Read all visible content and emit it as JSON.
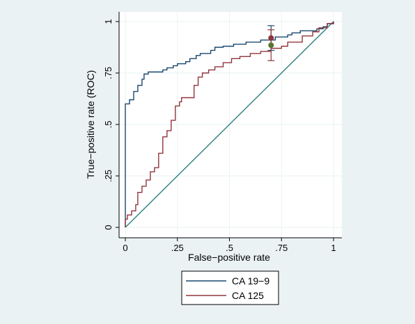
{
  "chart_data": {
    "type": "line",
    "title": "",
    "xlabel": "False−positive rate",
    "ylabel": "True−positive rate (ROC)",
    "xlim": [
      0,
      1
    ],
    "ylim": [
      0,
      1
    ],
    "xticks": [
      {
        "value": 0,
        "label": "0"
      },
      {
        "value": 0.25,
        "label": ".25"
      },
      {
        "value": 0.5,
        "label": ".5"
      },
      {
        "value": 0.75,
        "label": ".75"
      },
      {
        "value": 1,
        "label": "1"
      }
    ],
    "yticks": [
      {
        "value": 0,
        "label": "0"
      },
      {
        "value": 0.25,
        "label": ".25"
      },
      {
        "value": 0.5,
        "label": ".5"
      },
      {
        "value": 0.75,
        "label": ".75"
      },
      {
        "value": 1,
        "label": "1"
      }
    ],
    "grid": true,
    "legend_position": "bottom",
    "series": [
      {
        "name": "CA 19−9",
        "color": "#1a476f",
        "points": [
          [
            0,
            0
          ],
          [
            0,
            0.6
          ],
          [
            0.02,
            0.6
          ],
          [
            0.02,
            0.62
          ],
          [
            0.04,
            0.62
          ],
          [
            0.04,
            0.66
          ],
          [
            0.06,
            0.66
          ],
          [
            0.06,
            0.69
          ],
          [
            0.08,
            0.69
          ],
          [
            0.08,
            0.72
          ],
          [
            0.09,
            0.72
          ],
          [
            0.09,
            0.745
          ],
          [
            0.11,
            0.745
          ],
          [
            0.11,
            0.755
          ],
          [
            0.18,
            0.755
          ],
          [
            0.18,
            0.765
          ],
          [
            0.2,
            0.765
          ],
          [
            0.2,
            0.775
          ],
          [
            0.23,
            0.775
          ],
          [
            0.23,
            0.785
          ],
          [
            0.25,
            0.785
          ],
          [
            0.25,
            0.795
          ],
          [
            0.29,
            0.795
          ],
          [
            0.29,
            0.805
          ],
          [
            0.31,
            0.805
          ],
          [
            0.31,
            0.82
          ],
          [
            0.34,
            0.82
          ],
          [
            0.34,
            0.835
          ],
          [
            0.36,
            0.835
          ],
          [
            0.36,
            0.845
          ],
          [
            0.41,
            0.845
          ],
          [
            0.41,
            0.86
          ],
          [
            0.43,
            0.86
          ],
          [
            0.43,
            0.875
          ],
          [
            0.47,
            0.875
          ],
          [
            0.47,
            0.88
          ],
          [
            0.52,
            0.88
          ],
          [
            0.52,
            0.89
          ],
          [
            0.58,
            0.89
          ],
          [
            0.58,
            0.9
          ],
          [
            0.65,
            0.9
          ],
          [
            0.65,
            0.91
          ],
          [
            0.72,
            0.91
          ],
          [
            0.72,
            0.925
          ],
          [
            0.78,
            0.925
          ],
          [
            0.78,
            0.935
          ],
          [
            0.8,
            0.935
          ],
          [
            0.8,
            0.945
          ],
          [
            0.84,
            0.945
          ],
          [
            0.84,
            0.955
          ],
          [
            0.92,
            0.955
          ],
          [
            0.92,
            0.965
          ],
          [
            0.95,
            0.965
          ],
          [
            0.95,
            0.975
          ],
          [
            0.97,
            0.975
          ],
          [
            0.97,
            0.99
          ],
          [
            1,
            0.99
          ],
          [
            1,
            1
          ]
        ],
        "operating_point": {
          "x": 0.7,
          "y": 0.92,
          "ci": [
            0.86,
            0.98
          ]
        }
      },
      {
        "name": "CA 125",
        "color": "#90353b",
        "points": [
          [
            0,
            0
          ],
          [
            0,
            0.04
          ],
          [
            0.01,
            0.04
          ],
          [
            0.01,
            0.06
          ],
          [
            0.03,
            0.06
          ],
          [
            0.03,
            0.08
          ],
          [
            0.05,
            0.08
          ],
          [
            0.05,
            0.11
          ],
          [
            0.06,
            0.11
          ],
          [
            0.06,
            0.17
          ],
          [
            0.08,
            0.17
          ],
          [
            0.08,
            0.2
          ],
          [
            0.1,
            0.2
          ],
          [
            0.1,
            0.23
          ],
          [
            0.12,
            0.23
          ],
          [
            0.12,
            0.27
          ],
          [
            0.14,
            0.27
          ],
          [
            0.14,
            0.29
          ],
          [
            0.16,
            0.29
          ],
          [
            0.16,
            0.36
          ],
          [
            0.18,
            0.36
          ],
          [
            0.18,
            0.44
          ],
          [
            0.2,
            0.44
          ],
          [
            0.2,
            0.47
          ],
          [
            0.22,
            0.47
          ],
          [
            0.22,
            0.52
          ],
          [
            0.24,
            0.52
          ],
          [
            0.24,
            0.59
          ],
          [
            0.26,
            0.59
          ],
          [
            0.26,
            0.61
          ],
          [
            0.27,
            0.61
          ],
          [
            0.27,
            0.63
          ],
          [
            0.33,
            0.63
          ],
          [
            0.33,
            0.69
          ],
          [
            0.35,
            0.69
          ],
          [
            0.35,
            0.73
          ],
          [
            0.37,
            0.73
          ],
          [
            0.37,
            0.75
          ],
          [
            0.4,
            0.75
          ],
          [
            0.4,
            0.765
          ],
          [
            0.43,
            0.765
          ],
          [
            0.43,
            0.78
          ],
          [
            0.47,
            0.78
          ],
          [
            0.47,
            0.8
          ],
          [
            0.51,
            0.8
          ],
          [
            0.51,
            0.82
          ],
          [
            0.55,
            0.82
          ],
          [
            0.55,
            0.83
          ],
          [
            0.6,
            0.83
          ],
          [
            0.6,
            0.845
          ],
          [
            0.65,
            0.845
          ],
          [
            0.65,
            0.855
          ],
          [
            0.7,
            0.855
          ],
          [
            0.7,
            0.87
          ],
          [
            0.75,
            0.87
          ],
          [
            0.75,
            0.88
          ],
          [
            0.78,
            0.88
          ],
          [
            0.78,
            0.9
          ],
          [
            0.85,
            0.9
          ],
          [
            0.85,
            0.93
          ],
          [
            0.9,
            0.93
          ],
          [
            0.9,
            0.95
          ],
          [
            0.93,
            0.95
          ],
          [
            0.93,
            0.97
          ],
          [
            0.97,
            0.97
          ],
          [
            0.97,
            0.99
          ],
          [
            1,
            0.99
          ],
          [
            1,
            1
          ]
        ],
        "operating_point": {
          "x": 0.7,
          "y": 0.885,
          "ci": [
            0.81,
            0.96
          ]
        }
      }
    ],
    "reference_line": {
      "color": "#2d7f7f",
      "from": [
        0,
        0
      ],
      "to": [
        1,
        1
      ]
    }
  }
}
